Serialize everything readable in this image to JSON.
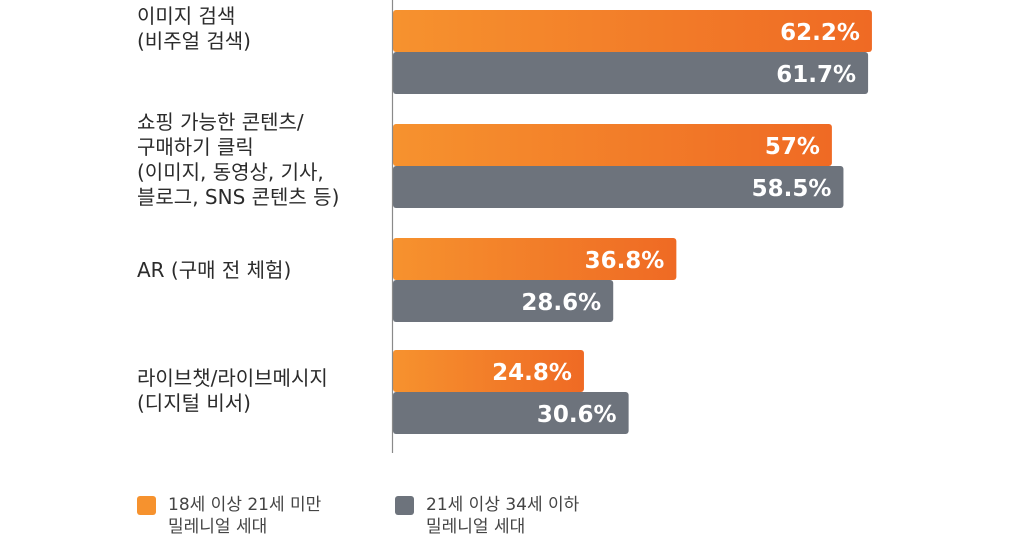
{
  "colors": {
    "orange_light": "#F6922E",
    "orange_dark": "#EF6A24",
    "gray": "#6D737C",
    "axis": "#8A8A8A",
    "value_text": "#FFFFFF"
  },
  "chart_data": {
    "type": "bar",
    "orientation": "horizontal",
    "categories": [
      [
        "이미지 검색",
        "(비주얼 검색)"
      ],
      [
        "쇼핑 가능한 콘텐츠/",
        "구매하기 클릭",
        "(이미지, 동영상, 기사,",
        "블로그, SNS 콘텐츠 등)"
      ],
      [
        "AR (구매 전 체험)"
      ],
      [
        "라이브챗/라이브메시지",
        "(디지털 비서)"
      ]
    ],
    "series": [
      {
        "name": "18세 이상 21세 미만 밀레니얼 세대",
        "values": [
          62.2,
          57,
          36.8,
          24.8
        ],
        "labels": [
          "62.2%",
          "57%",
          "36.8%",
          "24.8%"
        ]
      },
      {
        "name": "21세 이상 34세 이하 밀레니얼 세대",
        "values": [
          61.7,
          58.5,
          28.6,
          30.6
        ],
        "labels": [
          "61.7%",
          "58.5%",
          "28.6%",
          "30.6%"
        ]
      }
    ],
    "xlim": [
      0,
      80
    ],
    "grid": false,
    "legend_position": "bottom"
  },
  "legend": [
    {
      "lines": [
        "18세 이상 21세 미만",
        "밀레니얼 세대"
      ]
    },
    {
      "lines": [
        "21세 이상 34세 이하",
        "밀레니얼 세대"
      ]
    }
  ]
}
